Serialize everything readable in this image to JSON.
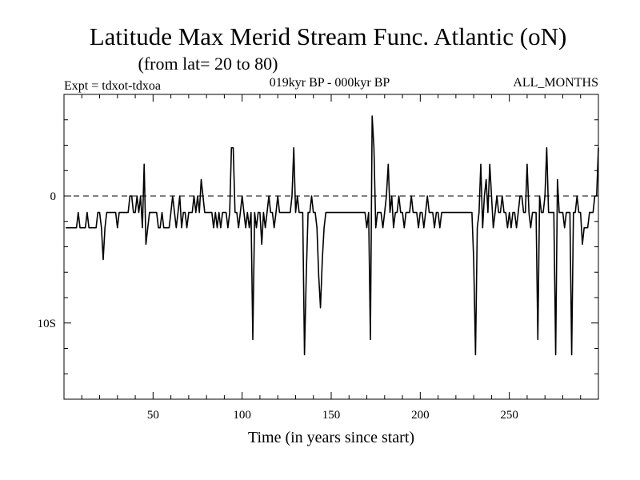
{
  "chart_data": {
    "type": "line",
    "title": "Latitude Max Merid Stream Func. Atlantic (oN)",
    "subtitle": "(from lat= 20 to 80)",
    "experiment_label": "Expt = tdxot-tdxoa",
    "period_label": "019kyr BP - 000kyr BP",
    "months_label": "ALL_MONTHS",
    "xlabel": "Time (in years since start)",
    "ylabel": "",
    "xlim": [
      0,
      300
    ],
    "ylim": [
      -16,
      8
    ],
    "x_ticks": [
      50,
      100,
      150,
      200,
      250
    ],
    "x_tick_labels": [
      "50",
      "100",
      "150",
      "200",
      "250"
    ],
    "y_ticks": [
      0,
      -10
    ],
    "y_tick_labels": [
      "0",
      "10S"
    ],
    "x_minor_step": 10,
    "y_minor_step": 2,
    "reference_line": 0,
    "grid": false,
    "series": [
      {
        "points": [
          [
            1,
            -2.5
          ],
          [
            6,
            -2.5
          ],
          [
            7,
            -2.5
          ],
          [
            8,
            -1.3
          ],
          [
            9,
            -2.5
          ],
          [
            12,
            -2.5
          ],
          [
            13,
            -1.3
          ],
          [
            14,
            -2.5
          ],
          [
            18,
            -2.5
          ],
          [
            19,
            -1.3
          ],
          [
            20,
            -1.3
          ],
          [
            21,
            -2.5
          ],
          [
            22,
            -5
          ],
          [
            23,
            -2.5
          ],
          [
            24,
            -1.3
          ],
          [
            25,
            -1.3
          ],
          [
            26,
            -1.3
          ],
          [
            27,
            -1.3
          ],
          [
            28,
            -1.3
          ],
          [
            29,
            -1.3
          ],
          [
            30,
            -2.5
          ],
          [
            31,
            -1.3
          ],
          [
            32,
            -1.3
          ],
          [
            33,
            -1.3
          ],
          [
            34,
            -1.3
          ],
          [
            35,
            -1.3
          ],
          [
            36,
            -1.3
          ],
          [
            37,
            0
          ],
          [
            38,
            0
          ],
          [
            39,
            -1.3
          ],
          [
            40,
            -1.3
          ],
          [
            41,
            0
          ],
          [
            42,
            -1.3
          ],
          [
            43,
            0
          ],
          [
            44,
            -2.5
          ],
          [
            45,
            2.5
          ],
          [
            46,
            -3.8
          ],
          [
            47,
            -2.5
          ],
          [
            48,
            -1.3
          ],
          [
            49,
            -1.3
          ],
          [
            50,
            -1.3
          ],
          [
            51,
            -1.3
          ],
          [
            52,
            -1.3
          ],
          [
            53,
            -2.5
          ],
          [
            54,
            -2.5
          ],
          [
            55,
            -1.3
          ],
          [
            56,
            -2.5
          ],
          [
            57,
            -2.5
          ],
          [
            58,
            -2.5
          ],
          [
            59,
            -2.5
          ],
          [
            60,
            -1.3
          ],
          [
            61,
            0
          ],
          [
            62,
            -1.3
          ],
          [
            63,
            -2.5
          ],
          [
            64,
            -1.3
          ],
          [
            65,
            0
          ],
          [
            66,
            -2.5
          ],
          [
            67,
            -1.3
          ],
          [
            68,
            -1.3
          ],
          [
            69,
            -2.5
          ],
          [
            70,
            -1.3
          ],
          [
            71,
            -1.3
          ],
          [
            72,
            -1.3
          ],
          [
            73,
            0
          ],
          [
            74,
            -1.3
          ],
          [
            75,
            0
          ],
          [
            76,
            -1.3
          ],
          [
            77,
            1.3
          ],
          [
            78,
            0
          ],
          [
            79,
            -1.3
          ],
          [
            80,
            -1.3
          ],
          [
            81,
            -1.3
          ],
          [
            82,
            -1.3
          ],
          [
            83,
            -1.3
          ],
          [
            84,
            -2.5
          ],
          [
            85,
            -1.3
          ],
          [
            86,
            -2.5
          ],
          [
            87,
            -1.3
          ],
          [
            88,
            -2.5
          ],
          [
            89,
            -1.3
          ],
          [
            90,
            -1.3
          ],
          [
            91,
            -1.3
          ],
          [
            92,
            -2.5
          ],
          [
            93,
            -1.3
          ],
          [
            94,
            3.8
          ],
          [
            95,
            3.8
          ],
          [
            96,
            -1.3
          ],
          [
            97,
            -1.3
          ],
          [
            98,
            -2.5
          ],
          [
            99,
            -1.3
          ],
          [
            100,
            0
          ],
          [
            101,
            -1.3
          ],
          [
            102,
            -2.5
          ],
          [
            103,
            -1.3
          ],
          [
            104,
            -2.5
          ],
          [
            105,
            -1.3
          ],
          [
            106,
            -11.3
          ],
          [
            107,
            -1.3
          ],
          [
            108,
            -2.5
          ],
          [
            109,
            -1.3
          ],
          [
            110,
            -1.3
          ],
          [
            111,
            -3.8
          ],
          [
            112,
            -1.3
          ],
          [
            113,
            -2.5
          ],
          [
            114,
            -1.3
          ],
          [
            115,
            0
          ],
          [
            116,
            -1.3
          ],
          [
            117,
            -1.3
          ],
          [
            118,
            -2.5
          ],
          [
            119,
            -1.3
          ],
          [
            120,
            0
          ],
          [
            121,
            -1.3
          ],
          [
            122,
            -1.3
          ],
          [
            123,
            -1.3
          ],
          [
            124,
            -1.3
          ],
          [
            125,
            -1.3
          ],
          [
            126,
            -1.3
          ],
          [
            127,
            -1.3
          ],
          [
            128,
            0
          ],
          [
            129,
            3.8
          ],
          [
            130,
            -1.3
          ],
          [
            131,
            0
          ],
          [
            132,
            -1.3
          ],
          [
            133,
            -1.3
          ],
          [
            134,
            -1.3
          ],
          [
            135,
            -12.5
          ],
          [
            136,
            -6.3
          ],
          [
            137,
            -1.3
          ],
          [
            138,
            -1.3
          ],
          [
            139,
            0
          ],
          [
            140,
            -1.3
          ],
          [
            141,
            -1.3
          ],
          [
            142,
            -2.5
          ],
          [
            143,
            -6.3
          ],
          [
            144,
            -8.8
          ],
          [
            145,
            -5
          ],
          [
            146,
            -2.5
          ],
          [
            147,
            -1.3
          ],
          [
            148,
            -1.3
          ],
          [
            149,
            -1.3
          ],
          [
            150,
            -1.3
          ],
          [
            155,
            -1.3
          ],
          [
            160,
            -1.3
          ],
          [
            165,
            -1.3
          ],
          [
            168,
            -1.3
          ],
          [
            169,
            -1.3
          ],
          [
            170,
            -2.5
          ],
          [
            171,
            -1.3
          ],
          [
            172,
            -11.3
          ],
          [
            173,
            6.3
          ],
          [
            174,
            3.8
          ],
          [
            175,
            -2.5
          ],
          [
            176,
            -1.3
          ],
          [
            177,
            -1.3
          ],
          [
            178,
            -1.3
          ],
          [
            179,
            -2.5
          ],
          [
            180,
            -1.3
          ],
          [
            181,
            0
          ],
          [
            182,
            2.5
          ],
          [
            183,
            -1.3
          ],
          [
            184,
            0
          ],
          [
            185,
            -2.5
          ],
          [
            186,
            -1.3
          ],
          [
            187,
            -1.3
          ],
          [
            188,
            0
          ],
          [
            189,
            -1.3
          ],
          [
            190,
            -1.3
          ],
          [
            191,
            -2.5
          ],
          [
            192,
            -1.3
          ],
          [
            193,
            -1.3
          ],
          [
            194,
            -1.3
          ],
          [
            195,
            0
          ],
          [
            196,
            -1.3
          ],
          [
            197,
            -1.3
          ],
          [
            198,
            -1.3
          ],
          [
            199,
            -2.5
          ],
          [
            200,
            -1.3
          ],
          [
            201,
            -1.3
          ],
          [
            202,
            -2.5
          ],
          [
            203,
            -1.3
          ],
          [
            204,
            0
          ],
          [
            205,
            -1.3
          ],
          [
            206,
            -1.3
          ],
          [
            207,
            -1.3
          ],
          [
            208,
            -2.5
          ],
          [
            209,
            -1.3
          ],
          [
            210,
            -1.3
          ],
          [
            211,
            -2.5
          ],
          [
            212,
            -1.3
          ],
          [
            213,
            -1.3
          ],
          [
            214,
            -1.3
          ],
          [
            215,
            -1.3
          ],
          [
            220,
            -1.3
          ],
          [
            225,
            -1.3
          ],
          [
            229,
            -1.3
          ],
          [
            230,
            -5
          ],
          [
            231,
            -12.5
          ],
          [
            232,
            -2.5
          ],
          [
            233,
            -1.3
          ],
          [
            234,
            2.5
          ],
          [
            235,
            -2.5
          ],
          [
            236,
            0
          ],
          [
            237,
            1.3
          ],
          [
            238,
            -1.3
          ],
          [
            239,
            2.5
          ],
          [
            240,
            0
          ],
          [
            241,
            -2.5
          ],
          [
            242,
            -1.3
          ],
          [
            243,
            0
          ],
          [
            244,
            -1.3
          ],
          [
            245,
            -1.3
          ],
          [
            246,
            0
          ],
          [
            247,
            -1.3
          ],
          [
            248,
            -1.3
          ],
          [
            249,
            -2.5
          ],
          [
            250,
            -1.3
          ],
          [
            251,
            -2.5
          ],
          [
            252,
            -1.3
          ],
          [
            253,
            -1.3
          ],
          [
            254,
            -2.5
          ],
          [
            255,
            -1.3
          ],
          [
            256,
            0
          ],
          [
            257,
            0
          ],
          [
            258,
            -1.3
          ],
          [
            259,
            -1.3
          ],
          [
            260,
            2.5
          ],
          [
            261,
            -1.3
          ],
          [
            262,
            -2.5
          ],
          [
            263,
            -1.3
          ],
          [
            264,
            -1.3
          ],
          [
            265,
            -1.3
          ],
          [
            266,
            -11.3
          ],
          [
            267,
            0
          ],
          [
            268,
            -1.3
          ],
          [
            269,
            -1.3
          ],
          [
            270,
            0
          ],
          [
            271,
            3.8
          ],
          [
            272,
            -1.3
          ],
          [
            273,
            -1.3
          ],
          [
            274,
            -1.3
          ],
          [
            275,
            -1.3
          ],
          [
            276,
            -12.5
          ],
          [
            277,
            1.3
          ],
          [
            278,
            -1.3
          ],
          [
            279,
            -1.3
          ],
          [
            280,
            -1.3
          ],
          [
            281,
            -2.5
          ],
          [
            282,
            -1.3
          ],
          [
            283,
            -1.3
          ],
          [
            284,
            -1.3
          ],
          [
            285,
            -12.5
          ],
          [
            286,
            -1.3
          ],
          [
            287,
            -1.3
          ],
          [
            288,
            0
          ],
          [
            289,
            -1.3
          ],
          [
            290,
            -1.3
          ],
          [
            291,
            -3.8
          ],
          [
            292,
            -2.5
          ],
          [
            293,
            -2.5
          ],
          [
            294,
            -2.5
          ],
          [
            295,
            -1.3
          ],
          [
            296,
            -1.3
          ],
          [
            297,
            -1.3
          ],
          [
            298,
            0
          ],
          [
            299,
            0
          ],
          [
            300,
            3.8
          ]
        ]
      }
    ]
  }
}
